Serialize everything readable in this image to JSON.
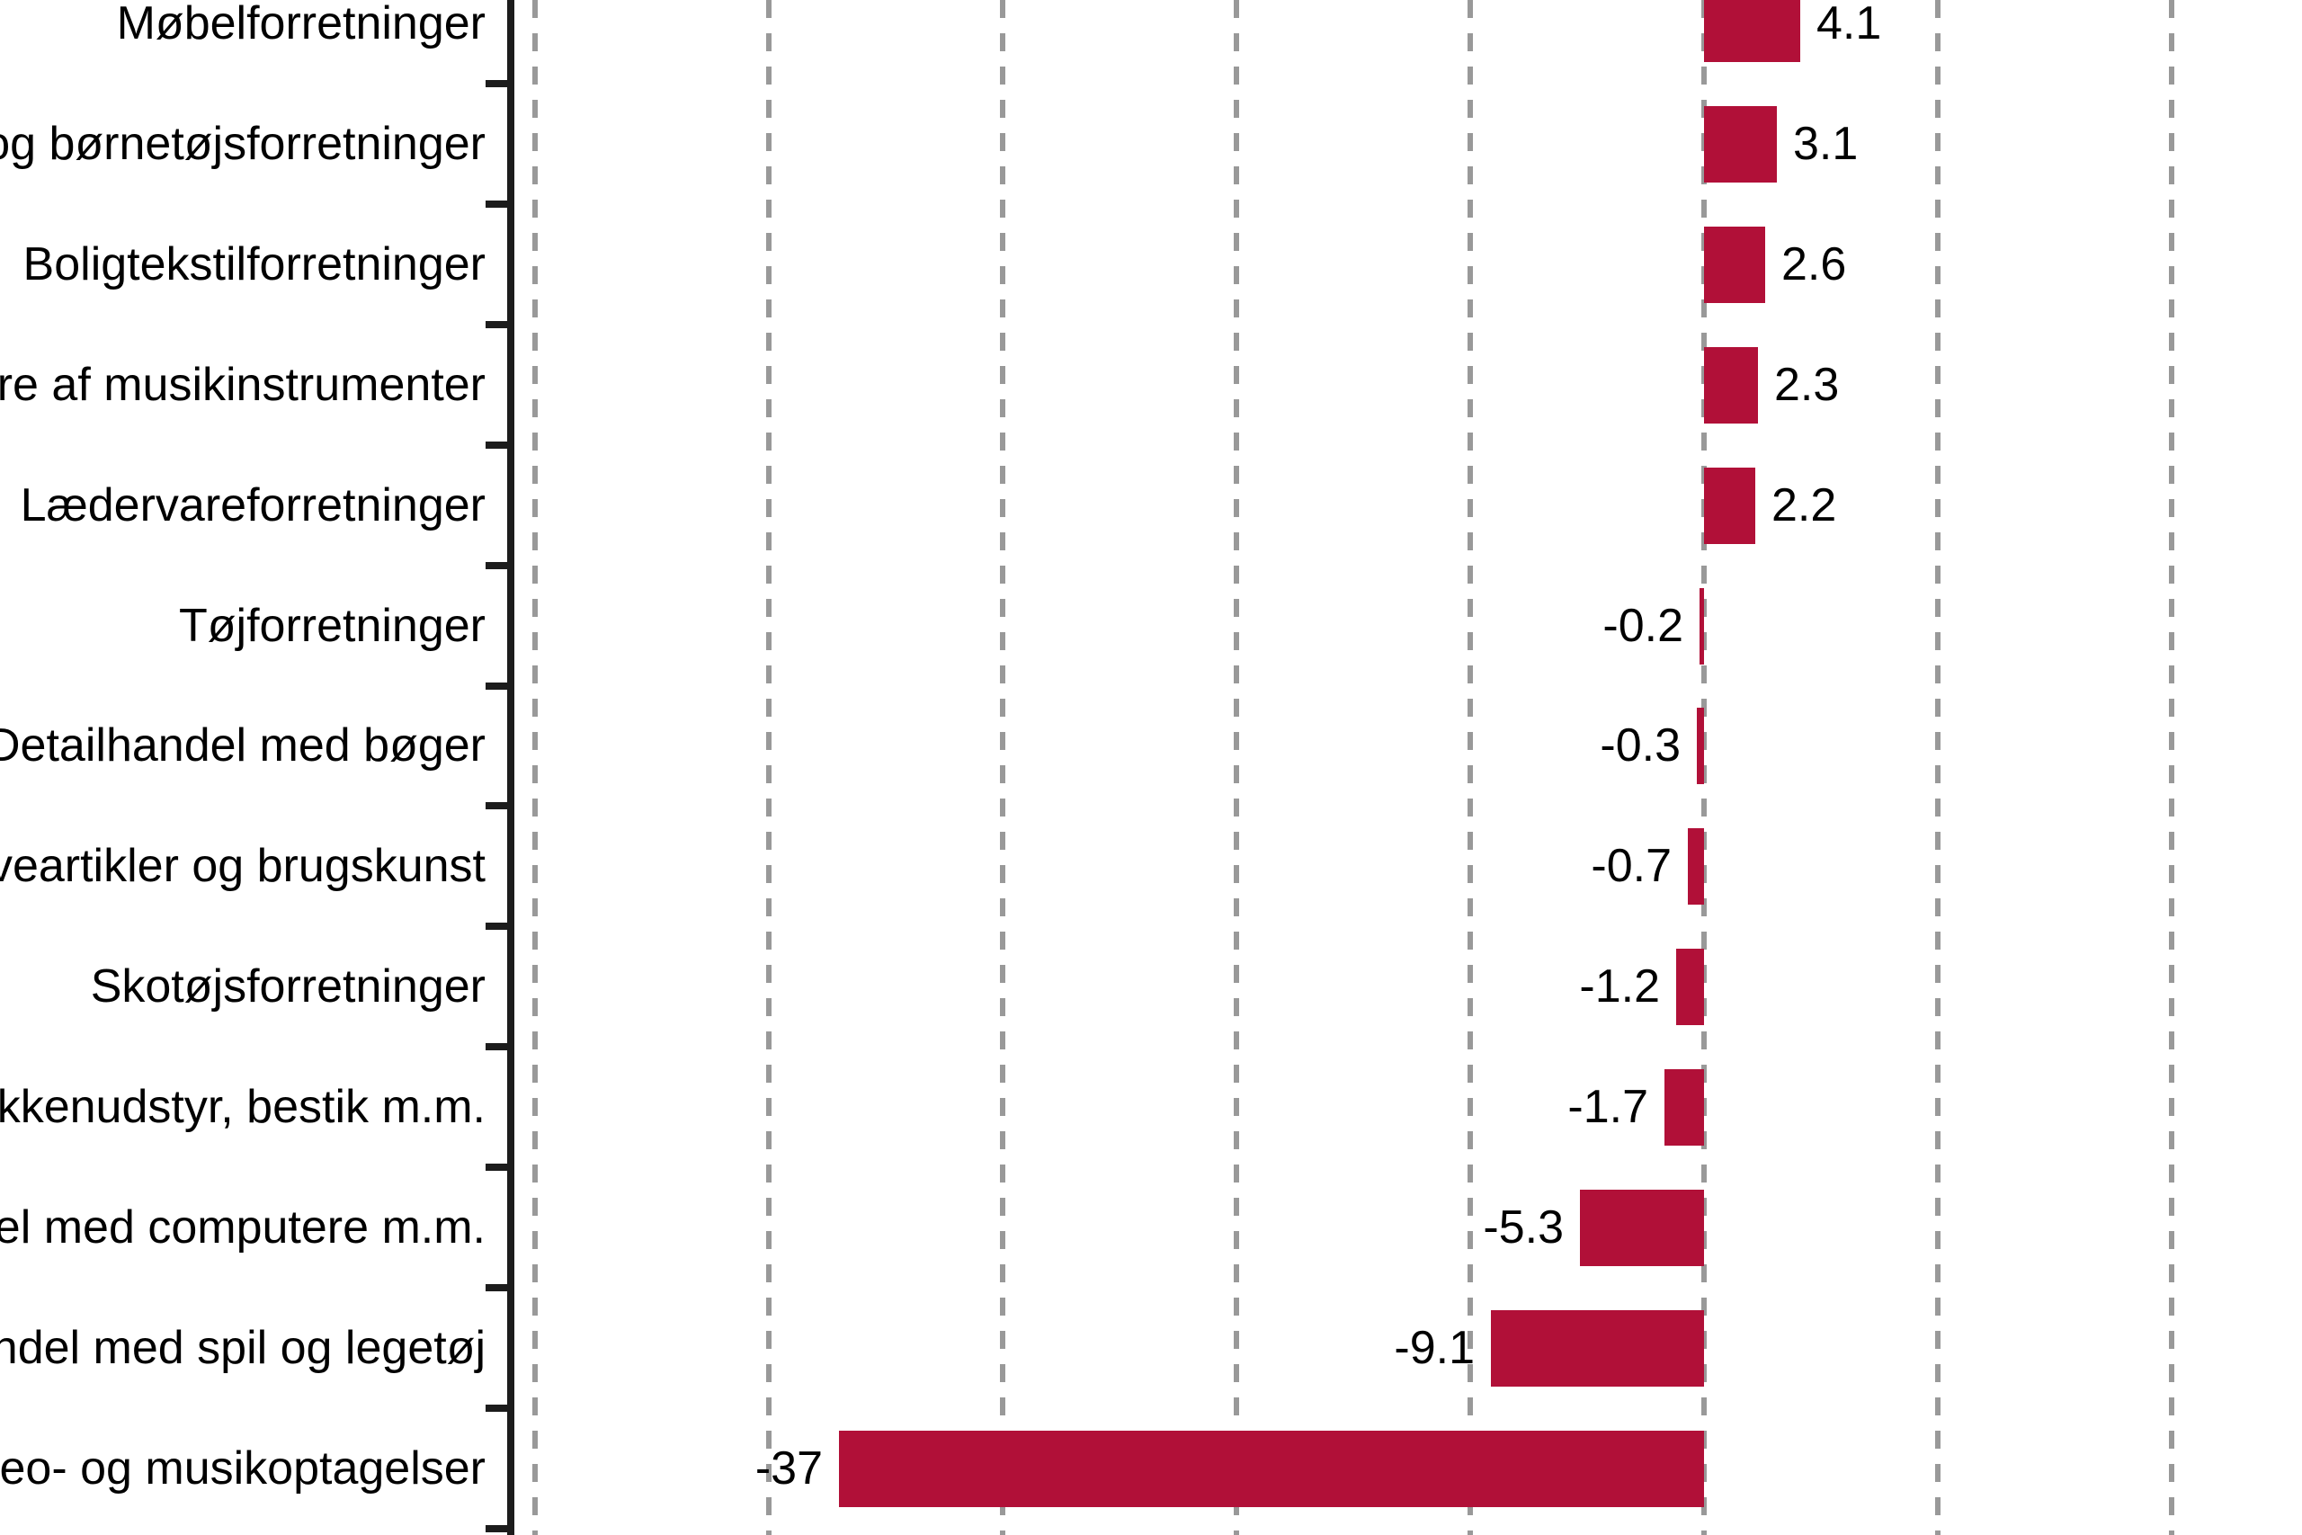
{
  "chart_data": {
    "type": "bar",
    "orientation": "horizontal",
    "title": "",
    "categories": [
      "Møbelforretninger",
      "og børnetøjsforretninger",
      "Boligtekstilforretninger",
      "ere af musikinstrumenter",
      "Lædervareforretninger",
      "Tøjforretninger",
      "Detailhandel med bøger",
      "veartikler og brugskunst",
      "Skotøjsforretninger",
      "økkenudstyr, bestik m.m.",
      "del med computere m.m.",
      "ndel med spil og legetøj",
      "deo- og musikoptagelser"
    ],
    "values": [
      4.1,
      3.1,
      2.6,
      2.3,
      2.2,
      -0.2,
      -0.3,
      -0.7,
      -1.2,
      -1.7,
      -5.3,
      -9.1,
      -37
    ],
    "value_labels": [
      "4.1",
      "3.1",
      "2.6",
      "2.3",
      "2.2",
      "-0.2",
      "-0.3",
      "-0.7",
      "-1.2",
      "-1.7",
      "-5.3",
      "-9.1",
      "-37"
    ],
    "gridlines": {
      "style": "dashed",
      "step": 10,
      "values": [
        -50,
        -40,
        -30,
        -20,
        -10,
        0,
        10,
        20
      ]
    },
    "legend": "none",
    "notes": "category labels are cropped at the left image edge; bars grow right for positive and left for negative values from the zero line"
  },
  "colors": {
    "bar": "#b11038",
    "gridline": "#999999",
    "axis": "#1c1c1c",
    "text": "#000000",
    "background": "#ffffff"
  }
}
